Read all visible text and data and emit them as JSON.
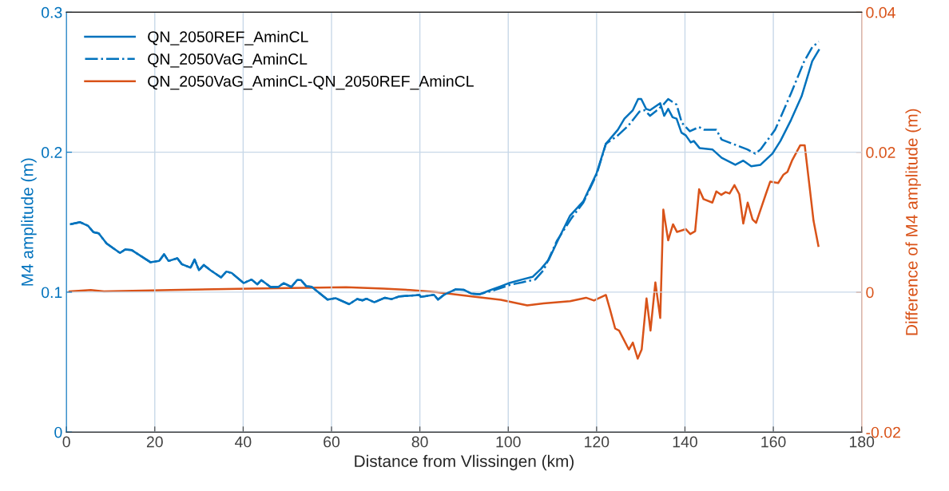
{
  "chart_data": {
    "type": "line",
    "xlabel": "Distance from Vlissingen (km)",
    "ylabel": "M4 amplitude (m)",
    "y2label": "Difference of M4 amplitude (m)",
    "xlim": [
      0,
      180
    ],
    "xticks": [
      0,
      20,
      40,
      60,
      80,
      100,
      120,
      140,
      160,
      180
    ],
    "ylim": [
      0,
      0.3
    ],
    "yticks": [
      0,
      0.1,
      0.2,
      0.3
    ],
    "y2lim": [
      -0.02,
      0.04
    ],
    "y2ticks": [
      -0.02,
      0,
      0.02,
      0.04
    ],
    "grid": true,
    "legend": "top left",
    "series": [
      {
        "name": "QN_2050REF_AminCL",
        "color": "#0072bd",
        "line_style": "solid",
        "x": [
          1.0,
          3.1,
          4.9,
          6.1,
          7.3,
          9.1,
          12.1,
          13.3,
          14.8,
          19.0,
          21.0,
          22.1,
          23.1,
          25.1,
          26.1,
          28.1,
          29.0,
          30.0,
          31.1,
          32.6,
          35.0,
          36.2,
          37.4,
          40.1,
          41.9,
          43.2,
          44.1,
          46.2,
          48.0,
          49.2,
          50.9,
          52.2,
          53.1,
          54.3,
          55.5,
          59.1,
          60.9,
          64.0,
          65.8,
          67.0,
          67.9,
          69.7,
          72.1,
          73.6,
          75.4,
          79.9,
          80.2,
          83.2,
          84.1,
          85.4,
          88.1,
          89.9,
          91.7,
          93.5,
          95.9,
          98.3,
          100.4,
          103.1,
          105.5,
          107.4,
          109.2,
          111.3,
          114.0,
          117.0,
          120.0,
          122.1,
          124.8,
          126.3,
          128.2,
          129.4,
          130.1,
          131.2,
          132.1,
          134.4,
          135.3,
          136.2,
          137.2,
          138.1,
          139.2,
          140.2,
          141.3,
          142.0,
          143.3,
          146.2,
          148.3,
          151.4,
          153.2,
          155.0,
          157.1,
          159.8,
          161.6,
          164.0,
          166.4,
          168.8,
          170.3
        ],
        "values": [
          0.1486,
          0.15,
          0.1474,
          0.1429,
          0.142,
          0.1347,
          0.128,
          0.1305,
          0.13,
          0.1214,
          0.1223,
          0.1271,
          0.1223,
          0.1242,
          0.12,
          0.1175,
          0.1233,
          0.1157,
          0.1194,
          0.1157,
          0.1105,
          0.1147,
          0.1137,
          0.1065,
          0.109,
          0.1056,
          0.1086,
          0.1037,
          0.1038,
          0.1065,
          0.1037,
          0.1086,
          0.1086,
          0.1042,
          0.1038,
          0.0947,
          0.0957,
          0.0914,
          0.0951,
          0.0941,
          0.0953,
          0.0928,
          0.096,
          0.095,
          0.097,
          0.098,
          0.0966,
          0.0981,
          0.0947,
          0.098,
          0.102,
          0.1017,
          0.0989,
          0.0985,
          0.1014,
          0.1042,
          0.1067,
          0.109,
          0.1109,
          0.1166,
          0.1233,
          0.1375,
          0.1547,
          0.165,
          0.185,
          0.206,
          0.216,
          0.224,
          0.23,
          0.238,
          0.238,
          0.231,
          0.23,
          0.235,
          0.226,
          0.231,
          0.225,
          0.224,
          0.214,
          0.212,
          0.207,
          0.208,
          0.203,
          0.202,
          0.196,
          0.191,
          0.194,
          0.19,
          0.191,
          0.199,
          0.208,
          0.223,
          0.24,
          0.265,
          0.273
        ]
      },
      {
        "name": "QN_2050VaG_AminCL",
        "color": "#0072bd",
        "line_style": "dashdot",
        "x": [
          1.0,
          3.1,
          4.9,
          6.1,
          7.3,
          9.1,
          12.1,
          13.3,
          14.8,
          19.0,
          21.0,
          22.1,
          23.1,
          25.1,
          26.1,
          28.1,
          29.0,
          30.0,
          31.1,
          32.6,
          35.0,
          36.2,
          37.4,
          40.1,
          41.9,
          43.2,
          44.1,
          46.2,
          48.0,
          49.2,
          50.9,
          52.2,
          53.1,
          54.3,
          55.5,
          59.1,
          60.9,
          64.0,
          65.8,
          67.0,
          67.9,
          69.7,
          72.1,
          73.6,
          75.4,
          79.9,
          80.2,
          83.2,
          84.1,
          85.4,
          88.1,
          89.9,
          91.7,
          93.5,
          95.9,
          100.4,
          103.1,
          106.1,
          108.0,
          111.0,
          114.3,
          117.0,
          120.0,
          122.1,
          124.8,
          127.2,
          129.7,
          130.9,
          132.1,
          133.3,
          135.1,
          136.2,
          138.1,
          139.3,
          141.1,
          143.2,
          144.4,
          147.1,
          148.3,
          150.8,
          154.1,
          155.9,
          157.1,
          160.4,
          164.0,
          167.0,
          168.8,
          170.3
        ],
        "values": [
          0.1486,
          0.15,
          0.1474,
          0.1429,
          0.142,
          0.1347,
          0.128,
          0.1305,
          0.13,
          0.1214,
          0.1223,
          0.1271,
          0.1223,
          0.1242,
          0.12,
          0.1175,
          0.1233,
          0.1157,
          0.1194,
          0.1157,
          0.1105,
          0.1147,
          0.1137,
          0.1065,
          0.109,
          0.1056,
          0.1086,
          0.1037,
          0.1038,
          0.1065,
          0.1037,
          0.1086,
          0.1086,
          0.1042,
          0.1038,
          0.0947,
          0.0957,
          0.0914,
          0.0951,
          0.0941,
          0.0953,
          0.0928,
          0.096,
          0.095,
          0.097,
          0.098,
          0.0966,
          0.0981,
          0.0947,
          0.098,
          0.102,
          0.1017,
          0.0989,
          0.0985,
          0.1005,
          0.1052,
          0.107,
          0.109,
          0.1157,
          0.1366,
          0.1528,
          0.164,
          0.184,
          0.206,
          0.212,
          0.219,
          0.229,
          0.23,
          0.226,
          0.229,
          0.234,
          0.238,
          0.234,
          0.221,
          0.215,
          0.218,
          0.216,
          0.216,
          0.209,
          0.206,
          0.202,
          0.199,
          0.202,
          0.216,
          0.242,
          0.265,
          0.275,
          0.279
        ]
      },
      {
        "name": "QN_2050VaG_AminCL-QN_2050REF_AminCL",
        "color": "#d95319",
        "line_style": "solid",
        "axis": "y2",
        "x": [
          0.7,
          5.5,
          8.5,
          23.6,
          41.6,
          63.3,
          71.8,
          77.8,
          83.9,
          91.7,
          98.3,
          104.3,
          108.0,
          114.0,
          117.6,
          119.4,
          122.1,
          123.0,
          124.2,
          125.1,
          127.3,
          128.2,
          129.3,
          130.2,
          131.3,
          132.2,
          133.3,
          134.4,
          135.1,
          136.2,
          137.3,
          138.2,
          140.2,
          141.2,
          142.3,
          143.2,
          144.2,
          146.2,
          147.1,
          148.2,
          149.2,
          150.1,
          151.2,
          152.3,
          153.2,
          154.2,
          155.3,
          156.1,
          158.3,
          159.3,
          161.1,
          162.3,
          163.2,
          164.3,
          166.1,
          167.1,
          168.2,
          169.1,
          170.2
        ],
        "values": [
          0.0001,
          0.0003,
          0.0001,
          0.0003,
          0.0005,
          0.0007,
          0.0005,
          0.0003,
          0.0,
          -0.0006,
          -0.0011,
          -0.0019,
          -0.0016,
          -0.0013,
          -0.0008,
          -0.0012,
          -0.0004,
          -0.0024,
          -0.0052,
          -0.0055,
          -0.0082,
          -0.0072,
          -0.0095,
          -0.0082,
          -0.0009,
          -0.0055,
          0.0014,
          -0.0037,
          0.0118,
          0.0074,
          0.0097,
          0.0086,
          0.009,
          0.0083,
          0.0087,
          0.0147,
          0.0133,
          0.0128,
          0.0144,
          0.0139,
          0.0143,
          0.0141,
          0.0153,
          0.014,
          0.0098,
          0.0128,
          0.0104,
          0.0099,
          0.014,
          0.0158,
          0.0156,
          0.0168,
          0.0172,
          0.0189,
          0.021,
          0.021,
          0.0151,
          0.0102,
          0.0066
        ]
      }
    ]
  }
}
